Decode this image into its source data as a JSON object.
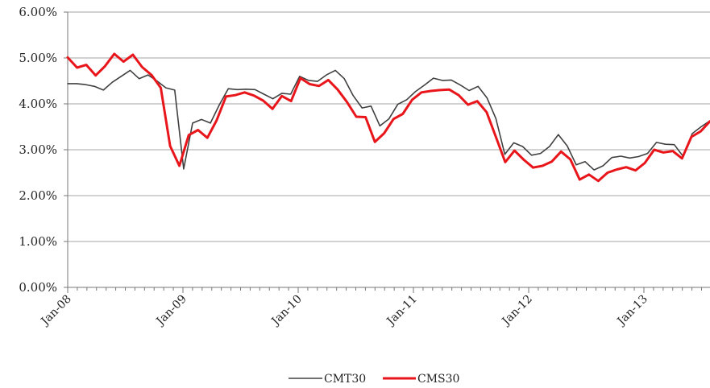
{
  "chart_data": {
    "type": "line",
    "title": "",
    "xlabel": "",
    "ylabel": "",
    "ylim": [
      0,
      6
    ],
    "y_tick_labels": [
      "0.00%",
      "1.00%",
      "2.00%",
      "3.00%",
      "4.00%",
      "5.00%",
      "6.00%"
    ],
    "x_tick_labels": [
      "Jan-08",
      "Jan-09",
      "Jan-10",
      "Jan-11",
      "Jan-12",
      "Jan-13"
    ],
    "x_start": "Jan-08",
    "x_end": "Jul-13",
    "grid": true,
    "legend_position": "bottom",
    "series": [
      {
        "name": "CMT30",
        "color": "#404040",
        "values": [
          4.44,
          4.44,
          4.42,
          4.38,
          4.3,
          4.47,
          4.6,
          4.73,
          4.55,
          4.63,
          4.5,
          4.35,
          4.3,
          2.58,
          3.58,
          3.66,
          3.58,
          3.98,
          4.33,
          4.31,
          4.32,
          4.31,
          4.21,
          4.11,
          4.23,
          4.21,
          4.6,
          4.51,
          4.49,
          4.63,
          4.73,
          4.55,
          4.18,
          3.91,
          3.95,
          3.52,
          3.67,
          3.99,
          4.09,
          4.27,
          4.41,
          4.56,
          4.51,
          4.52,
          4.41,
          4.29,
          4.38,
          4.13,
          3.68,
          2.9,
          3.15,
          3.07,
          2.88,
          2.92,
          3.07,
          3.33,
          3.08,
          2.67,
          2.74,
          2.56,
          2.65,
          2.83,
          2.86,
          2.82,
          2.85,
          2.92,
          3.16,
          3.12,
          3.11,
          2.85,
          3.35,
          3.5,
          3.63
        ]
      },
      {
        "name": "CMS30",
        "color": "#e8161b",
        "values": [
          5.01,
          4.79,
          4.85,
          4.62,
          4.82,
          5.09,
          4.92,
          5.07,
          4.8,
          4.63,
          4.35,
          3.08,
          2.65,
          3.32,
          3.43,
          3.26,
          3.64,
          4.16,
          4.19,
          4.25,
          4.18,
          4.07,
          3.89,
          4.17,
          4.06,
          4.56,
          4.43,
          4.39,
          4.52,
          4.31,
          4.04,
          3.72,
          3.71,
          3.17,
          3.36,
          3.67,
          3.78,
          4.09,
          4.25,
          4.28,
          4.3,
          4.31,
          4.19,
          3.98,
          4.06,
          3.82,
          3.28,
          2.73,
          2.98,
          2.78,
          2.61,
          2.65,
          2.74,
          2.96,
          2.79,
          2.35,
          2.46,
          2.32,
          2.5,
          2.57,
          2.62,
          2.55,
          2.71,
          3.0,
          2.94,
          2.97,
          2.81,
          3.28,
          3.4,
          3.62
        ]
      }
    ]
  }
}
